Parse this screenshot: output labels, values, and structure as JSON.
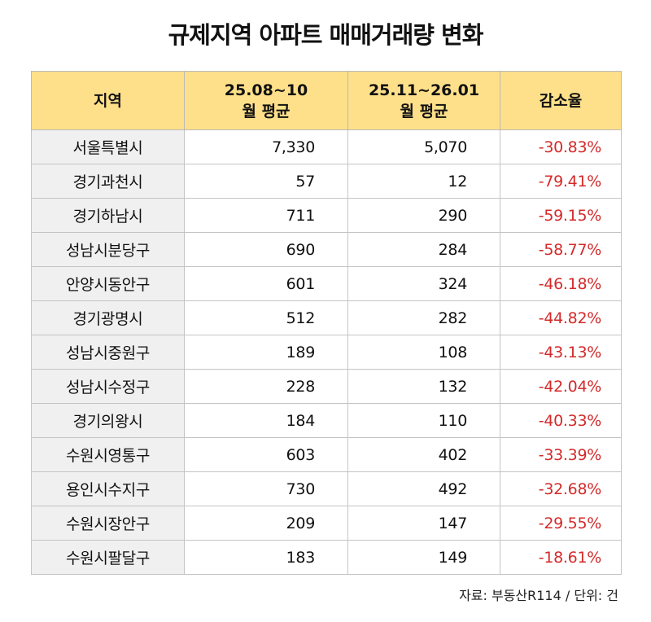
{
  "title": "규제지역 아파트 매매거래량 변화",
  "source": "자료: 부동산R114 / 단위: 건",
  "colors": {
    "header_bg": "#ffe08a",
    "region_bg": "#f0f0f0",
    "decrease": "#d42a2a"
  },
  "chart_data": {
    "type": "table",
    "title": "규제지역 아파트 매매거래량 변화",
    "columns": [
      {
        "line1": "지역",
        "line2": ""
      },
      {
        "line1": "25.08~10",
        "line2": "월 평균"
      },
      {
        "line1": "25.11~26.01",
        "line2": "월 평균"
      },
      {
        "line1": "감소율",
        "line2": ""
      }
    ],
    "rows": [
      {
        "region": "서울특별시",
        "before": "7,330",
        "after": "5,070",
        "change": "-30.83%"
      },
      {
        "region": "경기과천시",
        "before": "57",
        "after": "12",
        "change": "-79.41%"
      },
      {
        "region": "경기하남시",
        "before": "711",
        "after": "290",
        "change": "-59.15%"
      },
      {
        "region": "성남시분당구",
        "before": "690",
        "after": "284",
        "change": "-58.77%"
      },
      {
        "region": "안양시동안구",
        "before": "601",
        "after": "324",
        "change": "-46.18%"
      },
      {
        "region": "경기광명시",
        "before": "512",
        "after": "282",
        "change": "-44.82%"
      },
      {
        "region": "성남시중원구",
        "before": "189",
        "after": "108",
        "change": "-43.13%"
      },
      {
        "region": "성남시수정구",
        "before": "228",
        "after": "132",
        "change": "-42.04%"
      },
      {
        "region": "경기의왕시",
        "before": "184",
        "after": "110",
        "change": "-40.33%"
      },
      {
        "region": "수원시영통구",
        "before": "603",
        "after": "402",
        "change": "-33.39%"
      },
      {
        "region": "용인시수지구",
        "before": "730",
        "after": "492",
        "change": "-32.68%"
      },
      {
        "region": "수원시장안구",
        "before": "209",
        "after": "147",
        "change": "-29.55%"
      },
      {
        "region": "수원시팔달구",
        "before": "183",
        "after": "149",
        "change": "-18.61%"
      }
    ]
  }
}
